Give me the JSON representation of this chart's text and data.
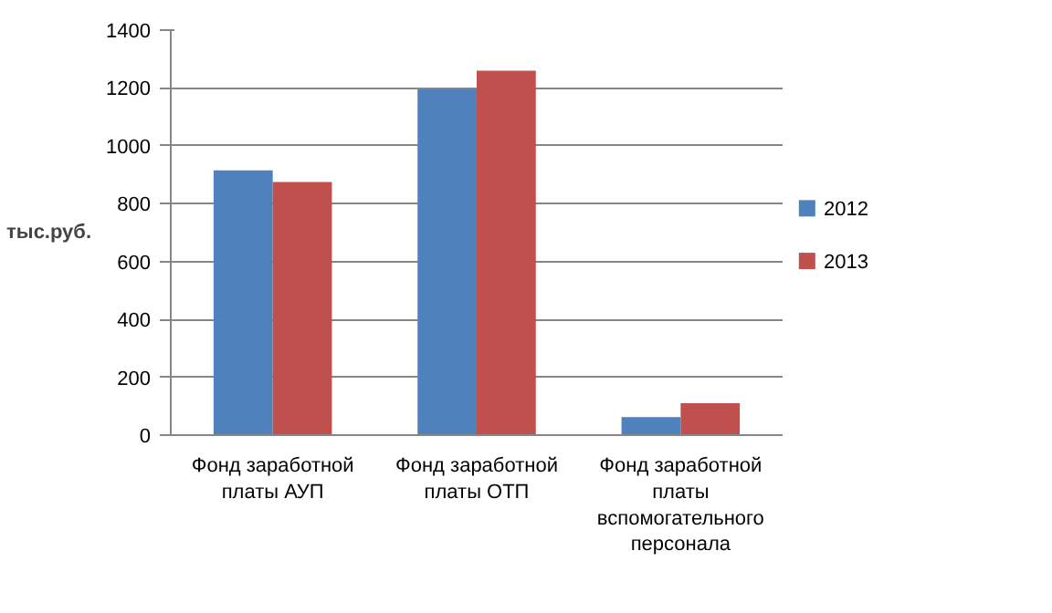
{
  "chart_data": {
    "type": "bar",
    "ylabel": "тыс.руб.",
    "categories": [
      "Фонд заработной платы АУП",
      "Фонд заработной платы ОТП",
      "Фонд заработной платы вспомогательного персонала"
    ],
    "series": [
      {
        "name": "2012",
        "color": "#4f81bd",
        "values": [
          915,
          1195,
          62
        ]
      },
      {
        "name": "2013",
        "color": "#c0504d",
        "values": [
          875,
          1260,
          110
        ]
      }
    ],
    "ylim": [
      0,
      1400
    ],
    "yticks": [
      0,
      200,
      400,
      600,
      800,
      1000,
      1200,
      1400
    ],
    "grid": "y",
    "legend": "right"
  }
}
